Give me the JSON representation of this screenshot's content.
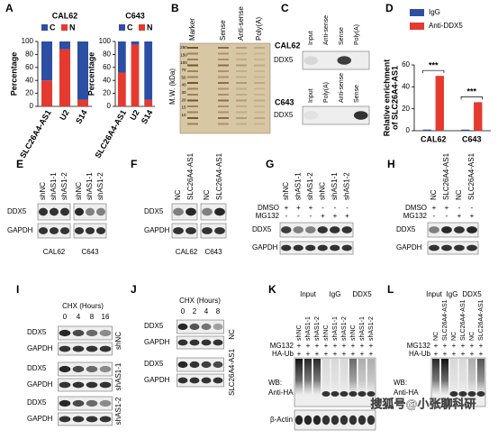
{
  "chart_data": [
    {
      "type": "bar",
      "stacked": true,
      "title": "CAL62",
      "ylabel": "Percentage",
      "categories": [
        "SLC26A4-AS1",
        "U2",
        "S14"
      ],
      "series": [
        {
          "name": "C",
          "color": "#2c4ea3",
          "values": [
            60,
            12,
            90
          ]
        },
        {
          "name": "N",
          "color": "#e53a2f",
          "values": [
            40,
            88,
            10
          ]
        }
      ],
      "ylim": [
        0,
        100
      ],
      "yticks": [
        0,
        20,
        40,
        60,
        80,
        100
      ]
    },
    {
      "type": "bar",
      "stacked": true,
      "title": "C643",
      "ylabel": "Percentage",
      "categories": [
        "SLC26A4-AS1",
        "U2",
        "S14"
      ],
      "series": [
        {
          "name": "C",
          "color": "#2c4ea3",
          "values": [
            48,
            5,
            90
          ]
        },
        {
          "name": "N",
          "color": "#e53a2f",
          "values": [
            52,
            95,
            10
          ]
        }
      ],
      "ylim": [
        0,
        100
      ],
      "yticks": [
        0,
        20,
        40,
        60,
        80,
        100
      ]
    },
    {
      "type": "bar",
      "stacked": false,
      "ylabel": [
        "Relative enrichment",
        "of SLC26A4-AS1"
      ],
      "categories": [
        "CAL62",
        "C643"
      ],
      "series": [
        {
          "name": "IgG",
          "color": "#2c4ea3",
          "values": [
            1,
            1
          ]
        },
        {
          "name": "Anti-DDX5",
          "color": "#e53a2f",
          "values": [
            50,
            26
          ]
        }
      ],
      "ylim": [
        0,
        60
      ],
      "yticks": [
        0,
        20,
        40,
        60
      ],
      "annotations": [
        "***",
        "***"
      ]
    }
  ],
  "panels": {
    "A": {
      "letter": "A"
    },
    "B": {
      "letter": "B",
      "lanes": [
        "Marker",
        "Sense",
        "Anti-sense",
        "Poly(A)"
      ],
      "ylabel": "M.W. (kDa)",
      "markers": [
        "250",
        "150",
        "100",
        "70",
        "50",
        "40",
        "30",
        "20",
        "15",
        "10"
      ]
    },
    "C": {
      "letter": "C",
      "blots": [
        {
          "cell": "CAL62",
          "lanes": [
            "Input",
            "Anti-sense",
            "Sense",
            "Poly(A)"
          ],
          "row": "DDX5"
        },
        {
          "cell": "C643",
          "lanes": [
            "Input",
            "Poly(A)",
            "Anti-sense",
            "Sense"
          ],
          "row": "DDX5"
        }
      ]
    },
    "D": {
      "letter": "D"
    },
    "E": {
      "letter": "E",
      "lanes": [
        "shNC",
        "shAS1-1",
        "shAS1-2",
        "shNC",
        "shAS1-1",
        "shAS1-2"
      ],
      "rows": [
        "DDX5",
        "GAPDH"
      ],
      "cells": [
        "CAL62",
        "C643"
      ]
    },
    "F": {
      "letter": "F",
      "lanes": [
        "NC",
        "SLC26A4-AS1",
        "NC",
        "SLC26A4-AS1"
      ],
      "rows": [
        "DDX5",
        "GAPDH"
      ],
      "cells": [
        "CAL62",
        "C643"
      ]
    },
    "G": {
      "letter": "G",
      "lanes": [
        "shNC",
        "shAS1-1",
        "shAS1-2",
        "shNC",
        "shAS1-1",
        "shAS1-2"
      ],
      "treatments": [
        {
          "name": "DMSO",
          "signs": [
            "+",
            "+",
            "+",
            "-",
            "-",
            "-"
          ]
        },
        {
          "name": "MG132",
          "signs": [
            "-",
            "-",
            "-",
            "+",
            "+",
            "+"
          ]
        }
      ],
      "rows": [
        "DDX5",
        "GAPDH"
      ]
    },
    "H": {
      "letter": "H",
      "lanes": [
        "NC",
        "SLC26A4-AS1",
        "NC",
        "SLC26A4-AS1"
      ],
      "treatments": [
        {
          "name": "DMSO",
          "signs": [
            "+",
            "+",
            "-",
            "-"
          ]
        },
        {
          "name": "MG132",
          "signs": [
            "-",
            "-",
            "+",
            "+"
          ]
        }
      ],
      "rows": [
        "DDX5",
        "GAPDH"
      ]
    },
    "I": {
      "letter": "I",
      "header": "CHX (Hours)",
      "times": [
        "0",
        "4",
        "8",
        "16"
      ],
      "groups": [
        {
          "name": "shNC",
          "rows": [
            "DDX5",
            "GAPDH"
          ]
        },
        {
          "name": "shAS1-1",
          "rows": [
            "DDX5",
            "GAPDH"
          ]
        },
        {
          "name": "shAS1-2",
          "rows": [
            "DDX5",
            "GAPDH"
          ]
        }
      ]
    },
    "J": {
      "letter": "J",
      "header": "CHX (Hours)",
      "times": [
        "0",
        "2",
        "4",
        "8"
      ],
      "groups": [
        {
          "name": "NC",
          "rows": [
            "DDX5",
            "GAPDH"
          ]
        },
        {
          "name": "SLC26A4-AS1",
          "rows": [
            "DDX5",
            "GAPDH"
          ]
        }
      ]
    },
    "K": {
      "letter": "K",
      "groups": [
        "Input",
        "IgG",
        "DDX5"
      ],
      "lanes": [
        "shNC",
        "shAS1-1",
        "shAS1-2",
        "shNC",
        "shAS1-1",
        "shAS1-2",
        "shNC",
        "shAS1-1",
        "shAS1-2"
      ],
      "treatments": [
        {
          "name": "MG132",
          "signs": [
            "+",
            "+",
            "+",
            "+",
            "+",
            "+",
            "+",
            "+",
            "+"
          ]
        },
        {
          "name": "HA-Ub",
          "signs": [
            "+",
            "+",
            "+",
            "+",
            "+",
            "+",
            "+",
            "+",
            "+"
          ]
        }
      ],
      "wb": [
        "WB:",
        "Anti-HA"
      ],
      "loading": "β-Actin"
    },
    "L": {
      "letter": "L",
      "groups": [
        "Input",
        "IgG",
        "DDX5"
      ],
      "lanes": [
        "NC",
        "SLC26A4-AS1",
        "NC",
        "SLC26A4-AS1",
        "NC",
        "SLC26A4-AS1"
      ],
      "treatments": [
        {
          "name": "MG132",
          "signs": [
            "+",
            "+",
            "+",
            "+",
            "+",
            "+"
          ]
        },
        {
          "name": "HA-Ub",
          "signs": [
            "+",
            "+",
            "+",
            "+",
            "+",
            "+"
          ]
        }
      ],
      "wb": [
        "WB:",
        "Anti-HA"
      ]
    }
  },
  "watermark": "搜狐号@小张聊科研"
}
